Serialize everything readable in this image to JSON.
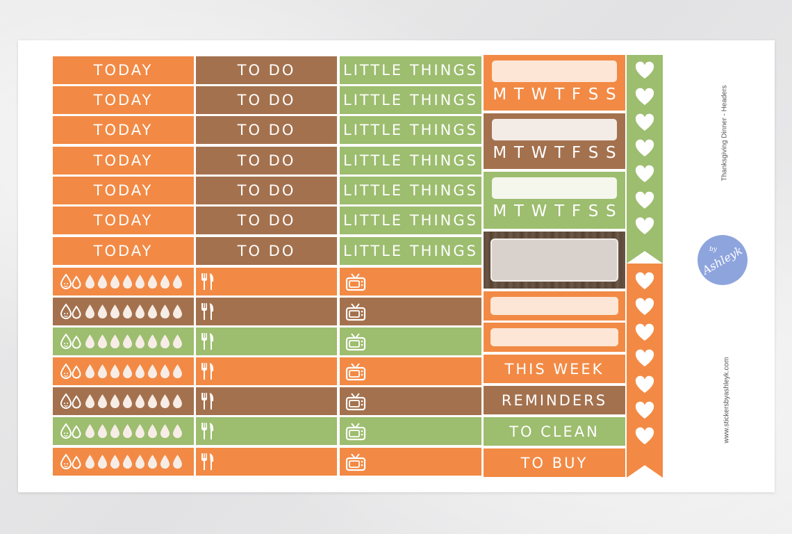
{
  "sheet": {
    "title": "Thanksgiving Dinner - Headers",
    "website": "www.stickersbyashleyk.com",
    "logo_text": "Ashleyk",
    "logo_prefix": "by"
  },
  "colors": {
    "orange": "#f28a45",
    "brown": "#a4714e",
    "green": "#9dbd6f",
    "light_peach": "#fde6d6",
    "light_beige": "#f3ebe6",
    "light_cream": "#f5f6ec",
    "logo_blue": "#8ea4dd"
  },
  "columns": {
    "today": [
      "TODAY",
      "TODAY",
      "TODAY",
      "TODAY",
      "TODAY",
      "TODAY",
      "TODAY"
    ],
    "todo": [
      "TO DO",
      "TO DO",
      "TO DO",
      "TO DO",
      "TO DO",
      "TO DO",
      "TO DO"
    ],
    "little": [
      "LITTLE THINGS",
      "LITTLE THINGS",
      "LITTLE THINGS",
      "LITTLE THINGS",
      "LITTLE THINGS",
      "LITTLE THINGS",
      "LITTLE THINGS"
    ]
  },
  "icon_rows": {
    "colors": [
      "orange",
      "brown",
      "green",
      "orange",
      "brown",
      "green",
      "orange"
    ],
    "water_icon": "water-tracker-icon",
    "meal_icon": "fork-knife-icon",
    "tv_icon": "tv-icon"
  },
  "week_letters": [
    "M",
    "T",
    "W",
    "T",
    "F",
    "S",
    "S"
  ],
  "labels": {
    "this_week": "THIS WEEK",
    "reminders": "REMINDERS",
    "to_clean": "TO CLEAN",
    "to_buy": "TO BUY"
  },
  "heart_icon": "heart-icon"
}
